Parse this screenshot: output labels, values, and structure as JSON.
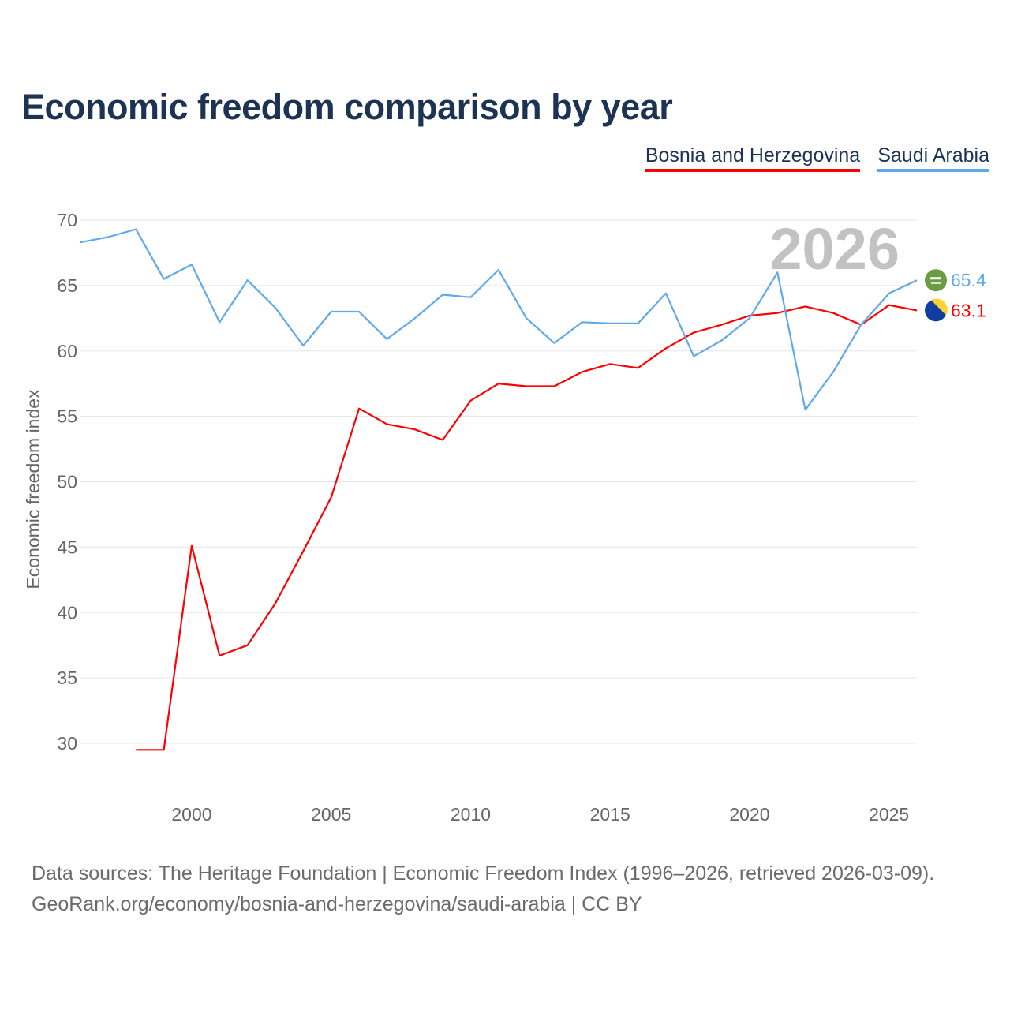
{
  "title": "Economic freedom comparison by year",
  "source_line1": "Data sources: The Heritage Foundation | Economic Freedom Index (1996–2026, retrieved 2026-03-09).",
  "source_line2": "GeoRank.org/economy/bosnia-and-herzegovina/saudi-arabia | CC BY",
  "chart_data": {
    "type": "line",
    "title": "Economic freedom comparison by year",
    "xlabel": "",
    "ylabel": "Economic freedom index",
    "xlim": [
      1996,
      2026
    ],
    "ylim": [
      25.5,
      71
    ],
    "x_ticks": [
      2000,
      2005,
      2010,
      2015,
      2020,
      2025
    ],
    "y_ticks": [
      30,
      35,
      40,
      45,
      50,
      55,
      60,
      65,
      70
    ],
    "grid": true,
    "legend_placement": "top-right",
    "year_label": "2026",
    "series": [
      {
        "name": "Bosnia and Herzegovina",
        "color": "#ff0000",
        "end_label": "63.1",
        "x": [
          1998,
          1999,
          2000,
          2001,
          2002,
          2003,
          2004,
          2005,
          2006,
          2007,
          2008,
          2009,
          2010,
          2011,
          2012,
          2013,
          2014,
          2015,
          2016,
          2017,
          2018,
          2019,
          2020,
          2021,
          2022,
          2023,
          2024,
          2025,
          2026
        ],
        "values": [
          29.5,
          29.5,
          45.1,
          36.7,
          37.5,
          40.7,
          44.7,
          48.8,
          55.6,
          54.4,
          54.0,
          53.2,
          56.2,
          57.5,
          57.3,
          57.3,
          58.4,
          59.0,
          58.7,
          60.2,
          61.4,
          62.0,
          62.7,
          62.9,
          63.4,
          62.9,
          62.0,
          63.5,
          63.1
        ]
      },
      {
        "name": "Saudi Arabia",
        "color": "#5ea9ea",
        "end_label": "65.4",
        "x": [
          1996,
          1997,
          1998,
          1999,
          2000,
          2001,
          2002,
          2003,
          2004,
          2005,
          2006,
          2007,
          2008,
          2009,
          2010,
          2011,
          2012,
          2013,
          2014,
          2015,
          2016,
          2017,
          2018,
          2019,
          2020,
          2021,
          2022,
          2023,
          2024,
          2025,
          2026
        ],
        "values": [
          68.3,
          68.7,
          69.3,
          65.5,
          66.6,
          62.2,
          65.4,
          63.3,
          60.4,
          63.0,
          63.0,
          60.9,
          62.5,
          64.3,
          64.1,
          66.2,
          62.5,
          60.6,
          62.2,
          62.1,
          62.1,
          64.4,
          59.6,
          60.8,
          62.5,
          66.0,
          55.5,
          58.4,
          62.0,
          64.4,
          65.4
        ]
      }
    ]
  }
}
